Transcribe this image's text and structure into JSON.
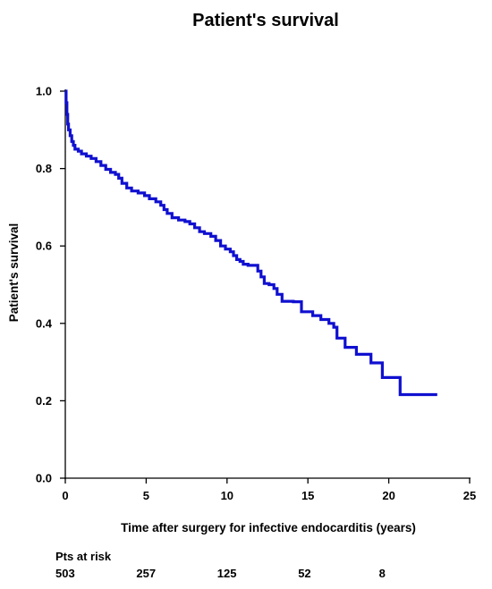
{
  "chart_data": {
    "type": "line",
    "step": true,
    "title": "Patient's survival",
    "xlabel": "Time after surgery for infective endocarditis (years)",
    "ylabel": "Patient's survival",
    "xlim": [
      0,
      25
    ],
    "ylim": [
      0,
      1.0
    ],
    "x_ticks": [
      0,
      5,
      10,
      15,
      20,
      25
    ],
    "y_ticks": [
      0.0,
      0.2,
      0.4,
      0.6,
      0.8,
      1.0
    ],
    "x_tick_labels": [
      "0",
      "5",
      "10",
      "15",
      "20",
      "25"
    ],
    "y_tick_labels": [
      "0.0",
      "0.2",
      "0.4",
      "0.6",
      "0.8",
      "1.0"
    ],
    "grid": false,
    "line_color": "#1010d0",
    "series": [
      {
        "points": [
          [
            0,
            1.0
          ],
          [
            0.05,
            0.97
          ],
          [
            0.1,
            0.94
          ],
          [
            0.15,
            0.915
          ],
          [
            0.2,
            0.9
          ],
          [
            0.3,
            0.885
          ],
          [
            0.4,
            0.87
          ],
          [
            0.5,
            0.86
          ],
          [
            0.6,
            0.85
          ],
          [
            0.8,
            0.845
          ],
          [
            1.0,
            0.838
          ],
          [
            1.3,
            0.832
          ],
          [
            1.6,
            0.826
          ],
          [
            1.9,
            0.818
          ],
          [
            2.2,
            0.808
          ],
          [
            2.5,
            0.798
          ],
          [
            2.8,
            0.79
          ],
          [
            3.1,
            0.785
          ],
          [
            3.3,
            0.775
          ],
          [
            3.5,
            0.762
          ],
          [
            3.8,
            0.75
          ],
          [
            4.1,
            0.742
          ],
          [
            4.5,
            0.737
          ],
          [
            4.9,
            0.73
          ],
          [
            5.2,
            0.722
          ],
          [
            5.6,
            0.714
          ],
          [
            5.9,
            0.705
          ],
          [
            6.1,
            0.694
          ],
          [
            6.3,
            0.684
          ],
          [
            6.6,
            0.673
          ],
          [
            7.0,
            0.667
          ],
          [
            7.4,
            0.663
          ],
          [
            7.7,
            0.657
          ],
          [
            8.0,
            0.647
          ],
          [
            8.3,
            0.637
          ],
          [
            8.6,
            0.632
          ],
          [
            9.0,
            0.625
          ],
          [
            9.3,
            0.614
          ],
          [
            9.6,
            0.6
          ],
          [
            9.9,
            0.592
          ],
          [
            10.2,
            0.585
          ],
          [
            10.4,
            0.575
          ],
          [
            10.6,
            0.565
          ],
          [
            10.8,
            0.56
          ],
          [
            11.0,
            0.553
          ],
          [
            11.3,
            0.55
          ],
          [
            11.9,
            0.535
          ],
          [
            12.1,
            0.52
          ],
          [
            12.3,
            0.503
          ],
          [
            12.6,
            0.5
          ],
          [
            12.9,
            0.49
          ],
          [
            13.1,
            0.475
          ],
          [
            13.4,
            0.457
          ],
          [
            14.1,
            0.456
          ],
          [
            14.6,
            0.43
          ],
          [
            15.3,
            0.42
          ],
          [
            15.8,
            0.41
          ],
          [
            16.3,
            0.4
          ],
          [
            16.6,
            0.39
          ],
          [
            16.8,
            0.362
          ],
          [
            17.3,
            0.338
          ],
          [
            18.0,
            0.32
          ],
          [
            18.9,
            0.298
          ],
          [
            19.6,
            0.26
          ],
          [
            20.7,
            0.216
          ],
          [
            23.0,
            0.216
          ]
        ]
      }
    ],
    "at_risk": {
      "label": "Pts at risk",
      "times": [
        0,
        5,
        10,
        15,
        20
      ],
      "values": [
        "503",
        "257",
        "125",
        "52",
        "8"
      ]
    }
  }
}
